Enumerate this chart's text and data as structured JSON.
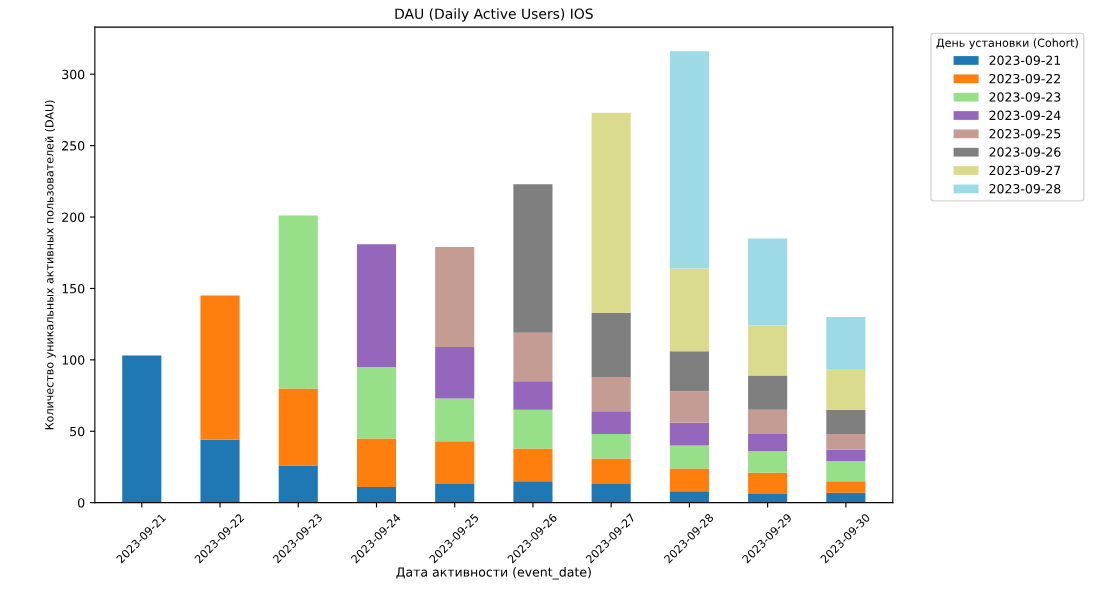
{
  "chart_data": {
    "type": "bar",
    "title": "DAU (Daily Active Users) IOS",
    "xlabel": "Дата активности (event_date)",
    "ylabel": "Количество уникальных активных пользователей (DAU)",
    "legend_title": "День установки (Cohort)",
    "categories": [
      "2023-09-21",
      "2023-09-22",
      "2023-09-23",
      "2023-09-24",
      "2023-09-25",
      "2023-09-26",
      "2023-09-27",
      "2023-09-28",
      "2023-09-29",
      "2023-09-30"
    ],
    "stacked": true,
    "ylim": [
      0,
      333
    ],
    "yticks": [
      0,
      50,
      100,
      150,
      200,
      250,
      300
    ],
    "grid": false,
    "legend": "right",
    "series": [
      {
        "name": "2023-09-21",
        "color": "#1f77b4",
        "values": [
          103,
          44,
          26,
          11,
          13,
          15,
          13,
          8,
          6,
          7
        ]
      },
      {
        "name": "2023-09-22",
        "color": "#ff7f0e",
        "values": [
          0,
          101,
          54,
          34,
          30,
          23,
          18,
          16,
          15,
          8
        ]
      },
      {
        "name": "2023-09-23",
        "color": "#98df8a",
        "values": [
          0,
          0,
          121,
          50,
          30,
          27,
          17,
          16,
          15,
          14
        ]
      },
      {
        "name": "2023-09-24",
        "color": "#9467bd",
        "values": [
          0,
          0,
          0,
          86,
          36,
          20,
          16,
          16,
          12,
          8
        ]
      },
      {
        "name": "2023-09-25",
        "color": "#c49c94",
        "values": [
          0,
          0,
          0,
          0,
          70,
          34,
          24,
          22,
          17,
          11
        ]
      },
      {
        "name": "2023-09-26",
        "color": "#7f7f7f",
        "values": [
          0,
          0,
          0,
          0,
          0,
          104,
          45,
          28,
          24,
          17
        ]
      },
      {
        "name": "2023-09-27",
        "color": "#dbdb8d",
        "values": [
          0,
          0,
          0,
          0,
          0,
          0,
          140,
          58,
          35,
          28
        ]
      },
      {
        "name": "2023-09-28",
        "color": "#9edae5",
        "values": [
          0,
          0,
          0,
          0,
          0,
          0,
          0,
          152,
          61,
          37
        ]
      }
    ]
  }
}
